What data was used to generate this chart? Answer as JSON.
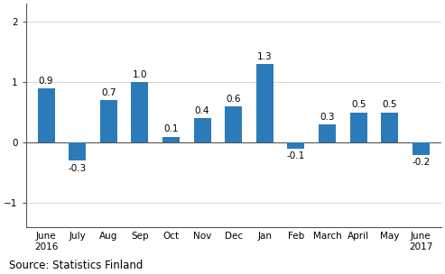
{
  "categories": [
    "June\n2016",
    "July",
    "Aug",
    "Sep",
    "Oct",
    "Nov",
    "Dec",
    "Jan",
    "Feb",
    "March",
    "April",
    "May",
    "June\n2017"
  ],
  "values": [
    0.9,
    -0.3,
    0.7,
    1.0,
    0.1,
    0.4,
    0.6,
    1.3,
    -0.1,
    0.3,
    0.5,
    0.5,
    -0.2
  ],
  "bar_color": "#2b7bba",
  "ylim": [
    -1.4,
    2.3
  ],
  "yticks": [
    -1,
    0,
    1,
    2
  ],
  "source_text": "Source: Statistics Finland",
  "bar_width": 0.55,
  "value_label_fontsize": 7.5,
  "tick_label_fontsize": 7.5,
  "source_fontsize": 8.5,
  "grid_color": "#d8d8d8",
  "spine_color": "#555555"
}
